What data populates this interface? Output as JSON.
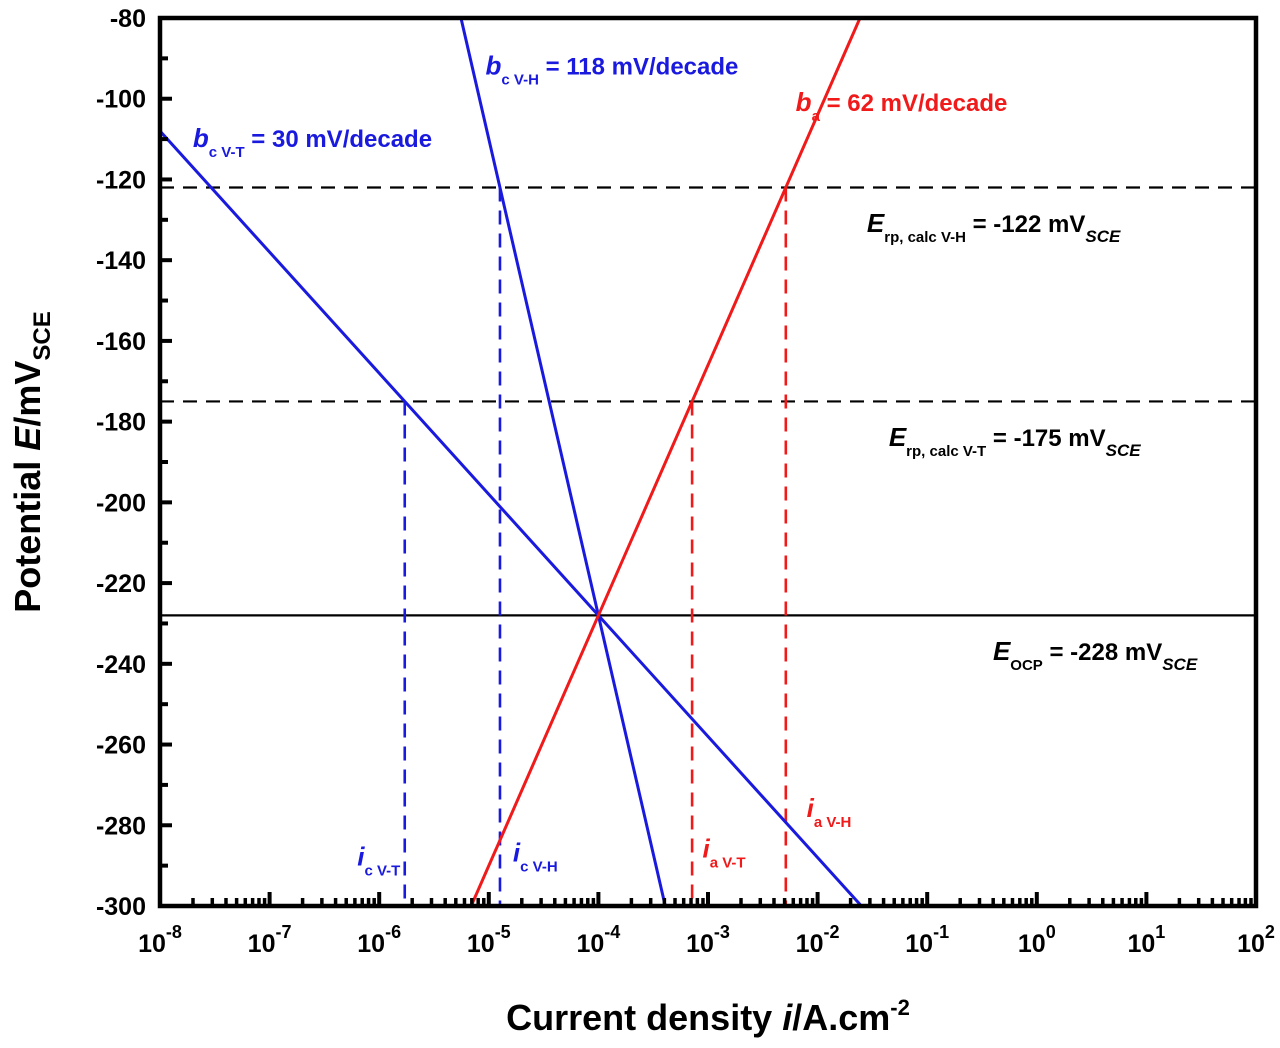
{
  "chart_data": {
    "type": "line",
    "xscale": "log",
    "xlim_log10": [
      -8,
      2
    ],
    "ylim": [
      -300,
      -80
    ],
    "xlabel": {
      "main": "Current density ",
      "italic": "i",
      "rest": "/A.cm",
      "sup": "-2"
    },
    "ylabel": {
      "main": "Potential ",
      "italic": "E",
      "rest": "/mV",
      "sub": "SCE"
    },
    "x_ticks_log10": [
      -8,
      -7,
      -6,
      -5,
      -4,
      -3,
      -2,
      -1,
      0,
      1,
      2
    ],
    "x_tick_base": "10",
    "y_ticks": [
      -80,
      -100,
      -120,
      -140,
      -160,
      -180,
      -200,
      -220,
      -240,
      -260,
      -280,
      -300
    ],
    "grid": false,
    "colors": {
      "cathodic": "#1a1adf",
      "anodic": "#f01a1a",
      "reference": "#000000"
    },
    "intersection": {
      "log10_i": -4,
      "E": -228
    },
    "series": [
      {
        "name": "b_c V-T",
        "color": "#1a1adf",
        "slope_mV_per_decade": -30,
        "points": [
          [
            -8,
            -108
          ],
          [
            -1.6,
            -300
          ]
        ]
      },
      {
        "name": "b_c V-H",
        "color": "#1a1adf",
        "slope_mV_per_decade": -118,
        "points": [
          [
            -5.254,
            -80
          ],
          [
            -3.39,
            -300
          ]
        ]
      },
      {
        "name": "b_a",
        "color": "#f01a1a",
        "slope_mV_per_decade": 62,
        "points": [
          [
            -5.161,
            -300
          ],
          [
            -1.613,
            -80
          ]
        ]
      }
    ],
    "hlines": [
      {
        "E": -122,
        "style": "dashed"
      },
      {
        "E": -175,
        "style": "dashed"
      },
      {
        "E": -228,
        "style": "solid"
      }
    ],
    "vlines": [
      {
        "log10_i": -5.767,
        "from_E": -175,
        "color": "#1a1adf"
      },
      {
        "log10_i": -4.898,
        "from_E": -122,
        "color": "#1a1adf"
      },
      {
        "log10_i": -3.145,
        "from_E": -175,
        "color": "#f01a1a"
      },
      {
        "log10_i": -2.29,
        "from_E": -122,
        "color": "#f01a1a"
      }
    ],
    "annotations": [
      {
        "id": "bcvt",
        "color": "#1a1adf",
        "italic": "b",
        "sub": "c V-T",
        "rest": " = 30 mV/decade",
        "at": [
          -7.7,
          -112
        ]
      },
      {
        "id": "bcvh",
        "color": "#1a1adf",
        "italic": "b",
        "sub": "c V-H",
        "rest": " = 118 mV/decade",
        "at": [
          -5.03,
          -94
        ]
      },
      {
        "id": "ba",
        "color": "#f01a1a",
        "italic": "b",
        "sub": "a",
        "rest": " = 62 mV/decade",
        "at": [
          -2.2,
          -103
        ]
      },
      {
        "id": "erp1",
        "color": "#000000",
        "italic": "E",
        "sub": "rp, calc V-H",
        "rest": " = -122 mV",
        "sub2": "SCE",
        "at": [
          -1.55,
          -133
        ]
      },
      {
        "id": "erp2",
        "color": "#000000",
        "italic": "E",
        "sub": "rp, calc V-T",
        "rest": " = -175 mV",
        "sub2": "SCE",
        "at": [
          -1.35,
          -186
        ]
      },
      {
        "id": "eocp",
        "color": "#000000",
        "italic": "E",
        "sub": "OCP",
        "rest": " = -228 mV",
        "sub2": "SCE",
        "at": [
          -0.4,
          -239
        ]
      },
      {
        "id": "icvt",
        "color": "#1a1adf",
        "italic": "i",
        "sub": "c V-T",
        "at": [
          -6.2,
          -290
        ]
      },
      {
        "id": "icvh",
        "color": "#1a1adf",
        "italic": "i",
        "sub": "c V-H",
        "at": [
          -4.78,
          -289
        ]
      },
      {
        "id": "iavt",
        "color": "#f01a1a",
        "italic": "i",
        "sub": "a V-T",
        "at": [
          -3.05,
          -288
        ]
      },
      {
        "id": "iavh",
        "color": "#f01a1a",
        "italic": "i",
        "sub": "a V-H",
        "at": [
          -2.1,
          -278
        ]
      }
    ]
  }
}
